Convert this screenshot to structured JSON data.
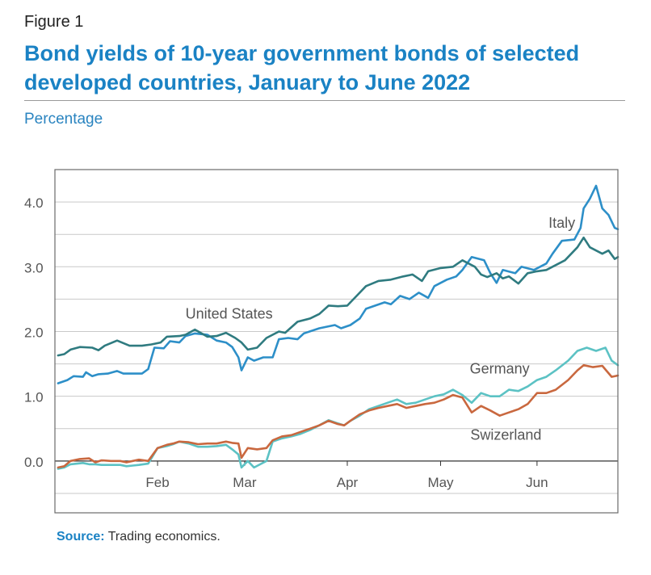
{
  "figure_label": "Figure 1",
  "title": "Bond yields of 10-year government bonds of selected developed countries, January to June 2022",
  "subtitle": "Percentage",
  "source": {
    "label": "Source:",
    "text": " Trading economics."
  },
  "colors": {
    "italy": "#2d8fc8",
    "united_states": "#2f7b80",
    "germany": "#5cc2c4",
    "switzerland": "#c9683f",
    "grid": "#c9c9c9",
    "frame": "#6a6a6a",
    "zero_line": "#333333",
    "label_text": "#555555"
  },
  "chart_data": {
    "type": "line",
    "title": "Bond yields of 10-year government bonds of selected developed countries, January to June 2022",
    "xlabel": "",
    "ylabel": "Percentage",
    "xlim": [
      0,
      181
    ],
    "ylim": [
      -0.8,
      4.5
    ],
    "grid": true,
    "yticks": [
      0.0,
      1.0,
      2.0,
      3.0,
      4.0
    ],
    "ytick_labels": [
      "0.0",
      "1.0",
      "2.0",
      "3.0",
      "4.0"
    ],
    "xticks": [
      {
        "label": "Feb",
        "day": 33
      },
      {
        "label": "Mar",
        "day": 61
      },
      {
        "label": "Apr",
        "day": 94
      },
      {
        "label": "May",
        "day": 124
      },
      {
        "label": "Jun",
        "day": 155
      }
    ],
    "series": [
      {
        "name": "Italy",
        "label": "Italy",
        "color_key": "italy",
        "label_pos": {
          "day": 163,
          "value": 3.6
        },
        "points": [
          [
            1,
            1.2
          ],
          [
            4,
            1.25
          ],
          [
            6,
            1.31
          ],
          [
            9,
            1.3
          ],
          [
            10,
            1.37
          ],
          [
            12,
            1.31
          ],
          [
            14,
            1.34
          ],
          [
            17,
            1.35
          ],
          [
            20,
            1.39
          ],
          [
            22,
            1.35
          ],
          [
            28,
            1.35
          ],
          [
            30,
            1.42
          ],
          [
            32,
            1.75
          ],
          [
            35,
            1.74
          ],
          [
            37,
            1.85
          ],
          [
            40,
            1.83
          ],
          [
            42,
            1.93
          ],
          [
            45,
            1.97
          ],
          [
            49,
            1.95
          ],
          [
            52,
            1.86
          ],
          [
            55,
            1.83
          ],
          [
            57,
            1.76
          ],
          [
            59,
            1.6
          ],
          [
            60,
            1.4
          ],
          [
            62,
            1.6
          ],
          [
            64,
            1.55
          ],
          [
            67,
            1.6
          ],
          [
            70,
            1.6
          ],
          [
            72,
            1.88
          ],
          [
            75,
            1.9
          ],
          [
            78,
            1.88
          ],
          [
            80,
            1.97
          ],
          [
            85,
            2.05
          ],
          [
            90,
            2.1
          ],
          [
            92,
            2.05
          ],
          [
            95,
            2.1
          ],
          [
            98,
            2.2
          ],
          [
            100,
            2.35
          ],
          [
            103,
            2.4
          ],
          [
            106,
            2.45
          ],
          [
            108,
            2.42
          ],
          [
            111,
            2.55
          ],
          [
            114,
            2.5
          ],
          [
            117,
            2.6
          ],
          [
            120,
            2.52
          ],
          [
            122,
            2.7
          ],
          [
            126,
            2.8
          ],
          [
            129,
            2.85
          ],
          [
            131,
            2.95
          ],
          [
            134,
            3.15
          ],
          [
            138,
            3.1
          ],
          [
            140,
            2.9
          ],
          [
            142,
            2.75
          ],
          [
            144,
            2.95
          ],
          [
            148,
            2.9
          ],
          [
            150,
            3.0
          ],
          [
            154,
            2.95
          ],
          [
            158,
            3.05
          ],
          [
            160,
            3.2
          ],
          [
            163,
            3.4
          ],
          [
            167,
            3.42
          ],
          [
            169,
            3.6
          ],
          [
            170,
            3.9
          ],
          [
            172,
            4.05
          ],
          [
            174,
            4.25
          ],
          [
            176,
            3.9
          ],
          [
            178,
            3.8
          ],
          [
            180,
            3.6
          ],
          [
            181,
            3.58
          ]
        ]
      },
      {
        "name": "United States",
        "label": "United States",
        "color_key": "united_states",
        "label_pos": {
          "day": 56,
          "value": 2.2
        },
        "points": [
          [
            1,
            1.63
          ],
          [
            3,
            1.65
          ],
          [
            5,
            1.72
          ],
          [
            8,
            1.76
          ],
          [
            12,
            1.75
          ],
          [
            14,
            1.71
          ],
          [
            16,
            1.78
          ],
          [
            20,
            1.86
          ],
          [
            24,
            1.78
          ],
          [
            28,
            1.78
          ],
          [
            31,
            1.8
          ],
          [
            34,
            1.83
          ],
          [
            36,
            1.92
          ],
          [
            40,
            1.93
          ],
          [
            42,
            1.95
          ],
          [
            45,
            2.03
          ],
          [
            49,
            1.92
          ],
          [
            52,
            1.93
          ],
          [
            55,
            1.98
          ],
          [
            58,
            1.9
          ],
          [
            60,
            1.83
          ],
          [
            62,
            1.72
          ],
          [
            65,
            1.75
          ],
          [
            68,
            1.9
          ],
          [
            72,
            2.0
          ],
          [
            74,
            1.98
          ],
          [
            78,
            2.15
          ],
          [
            82,
            2.2
          ],
          [
            85,
            2.27
          ],
          [
            88,
            2.4
          ],
          [
            91,
            2.39
          ],
          [
            94,
            2.4
          ],
          [
            96,
            2.5
          ],
          [
            98,
            2.6
          ],
          [
            100,
            2.7
          ],
          [
            104,
            2.78
          ],
          [
            108,
            2.8
          ],
          [
            112,
            2.85
          ],
          [
            115,
            2.88
          ],
          [
            118,
            2.78
          ],
          [
            120,
            2.93
          ],
          [
            124,
            2.98
          ],
          [
            128,
            3.0
          ],
          [
            131,
            3.1
          ],
          [
            133,
            3.05
          ],
          [
            135,
            3.0
          ],
          [
            137,
            2.88
          ],
          [
            139,
            2.84
          ],
          [
            142,
            2.9
          ],
          [
            144,
            2.82
          ],
          [
            146,
            2.85
          ],
          [
            149,
            2.74
          ],
          [
            152,
            2.9
          ],
          [
            155,
            2.93
          ],
          [
            158,
            2.95
          ],
          [
            160,
            3.0
          ],
          [
            164,
            3.1
          ],
          [
            168,
            3.3
          ],
          [
            170,
            3.45
          ],
          [
            172,
            3.3
          ],
          [
            176,
            3.2
          ],
          [
            178,
            3.25
          ],
          [
            180,
            3.12
          ],
          [
            181,
            3.15
          ]
        ]
      },
      {
        "name": "Germany",
        "label": "Germany",
        "color_key": "germany",
        "label_pos": {
          "day": 143,
          "value": 1.35
        },
        "points": [
          [
            1,
            -0.12
          ],
          [
            3,
            -0.1
          ],
          [
            5,
            -0.05
          ],
          [
            9,
            -0.03
          ],
          [
            11,
            -0.05
          ],
          [
            13,
            -0.05
          ],
          [
            15,
            -0.06
          ],
          [
            17,
            -0.06
          ],
          [
            19,
            -0.06
          ],
          [
            21,
            -0.06
          ],
          [
            23,
            -0.08
          ],
          [
            25,
            -0.07
          ],
          [
            27,
            -0.06
          ],
          [
            30,
            -0.04
          ],
          [
            33,
            0.2
          ],
          [
            36,
            0.23
          ],
          [
            38,
            0.26
          ],
          [
            40,
            0.3
          ],
          [
            43,
            0.27
          ],
          [
            46,
            0.22
          ],
          [
            49,
            0.22
          ],
          [
            52,
            0.23
          ],
          [
            55,
            0.25
          ],
          [
            57,
            0.18
          ],
          [
            59,
            0.1
          ],
          [
            60,
            -0.1
          ],
          [
            62,
            0.0
          ],
          [
            64,
            -0.1
          ],
          [
            66,
            -0.05
          ],
          [
            68,
            0.0
          ],
          [
            70,
            0.3
          ],
          [
            73,
            0.35
          ],
          [
            76,
            0.38
          ],
          [
            79,
            0.42
          ],
          [
            82,
            0.48
          ],
          [
            85,
            0.55
          ],
          [
            88,
            0.63
          ],
          [
            91,
            0.58
          ],
          [
            93,
            0.55
          ],
          [
            95,
            0.62
          ],
          [
            98,
            0.7
          ],
          [
            101,
            0.8
          ],
          [
            104,
            0.85
          ],
          [
            107,
            0.9
          ],
          [
            110,
            0.95
          ],
          [
            113,
            0.88
          ],
          [
            116,
            0.9
          ],
          [
            119,
            0.95
          ],
          [
            122,
            1.0
          ],
          [
            125,
            1.03
          ],
          [
            128,
            1.1
          ],
          [
            131,
            1.02
          ],
          [
            134,
            0.9
          ],
          [
            137,
            1.05
          ],
          [
            140,
            1.0
          ],
          [
            143,
            1.0
          ],
          [
            146,
            1.1
          ],
          [
            149,
            1.08
          ],
          [
            152,
            1.15
          ],
          [
            155,
            1.25
          ],
          [
            158,
            1.3
          ],
          [
            161,
            1.4
          ],
          [
            165,
            1.55
          ],
          [
            168,
            1.7
          ],
          [
            171,
            1.75
          ],
          [
            174,
            1.7
          ],
          [
            177,
            1.75
          ],
          [
            179,
            1.55
          ],
          [
            181,
            1.48
          ]
        ]
      },
      {
        "name": "Switzerland",
        "label": "Swizerland",
        "color_key": "switzerland",
        "label_pos": {
          "day": 145,
          "value": 0.33
        },
        "points": [
          [
            1,
            -0.1
          ],
          [
            3,
            -0.08
          ],
          [
            5,
            0.0
          ],
          [
            8,
            0.03
          ],
          [
            11,
            0.04
          ],
          [
            13,
            -0.02
          ],
          [
            15,
            0.01
          ],
          [
            18,
            0.0
          ],
          [
            21,
            0.0
          ],
          [
            23,
            -0.02
          ],
          [
            25,
            0.0
          ],
          [
            27,
            0.02
          ],
          [
            30,
            0.0
          ],
          [
            33,
            0.2
          ],
          [
            36,
            0.25
          ],
          [
            38,
            0.27
          ],
          [
            40,
            0.3
          ],
          [
            43,
            0.29
          ],
          [
            46,
            0.26
          ],
          [
            49,
            0.27
          ],
          [
            52,
            0.27
          ],
          [
            55,
            0.3
          ],
          [
            57,
            0.28
          ],
          [
            59,
            0.27
          ],
          [
            60,
            0.05
          ],
          [
            62,
            0.2
          ],
          [
            65,
            0.18
          ],
          [
            68,
            0.2
          ],
          [
            70,
            0.32
          ],
          [
            73,
            0.38
          ],
          [
            76,
            0.4
          ],
          [
            79,
            0.45
          ],
          [
            82,
            0.5
          ],
          [
            85,
            0.55
          ],
          [
            88,
            0.62
          ],
          [
            91,
            0.57
          ],
          [
            93,
            0.55
          ],
          [
            95,
            0.62
          ],
          [
            98,
            0.72
          ],
          [
            101,
            0.78
          ],
          [
            104,
            0.82
          ],
          [
            107,
            0.85
          ],
          [
            110,
            0.88
          ],
          [
            113,
            0.82
          ],
          [
            116,
            0.85
          ],
          [
            119,
            0.88
          ],
          [
            122,
            0.9
          ],
          [
            125,
            0.95
          ],
          [
            128,
            1.02
          ],
          [
            131,
            0.98
          ],
          [
            134,
            0.75
          ],
          [
            137,
            0.85
          ],
          [
            140,
            0.78
          ],
          [
            143,
            0.7
          ],
          [
            146,
            0.75
          ],
          [
            149,
            0.8
          ],
          [
            152,
            0.88
          ],
          [
            155,
            1.05
          ],
          [
            158,
            1.05
          ],
          [
            161,
            1.1
          ],
          [
            165,
            1.25
          ],
          [
            168,
            1.4
          ],
          [
            170,
            1.48
          ],
          [
            173,
            1.45
          ],
          [
            176,
            1.47
          ],
          [
            179,
            1.3
          ],
          [
            181,
            1.32
          ]
        ]
      }
    ]
  }
}
